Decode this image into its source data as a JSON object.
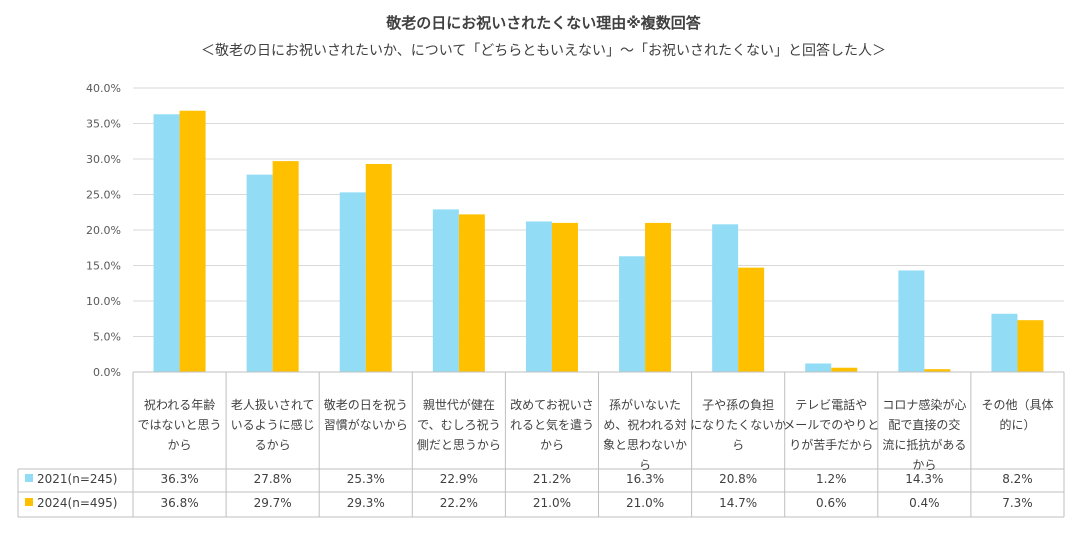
{
  "chart_data": {
    "type": "bar",
    "title": "敬老の日にお祝いされたくない理由※複数回答",
    "subtitle": "＜敬老の日にお祝いされたいか、について「どちらともいえない」～「お祝いされたくない」と回答した人＞",
    "ylim": [
      0,
      40
    ],
    "yticks": [
      "0.0%",
      "5.0%",
      "10.0%",
      "15.0%",
      "20.0%",
      "25.0%",
      "30.0%",
      "35.0%",
      "40.0%"
    ],
    "categories": [
      [
        "祝われる年齢",
        "ではないと思う",
        "から"
      ],
      [
        "老人扱いされて",
        "いるように感じ",
        "るから"
      ],
      [
        "敬老の日を祝う",
        "習慣がないから"
      ],
      [
        "親世代が健在",
        "で、むしろ祝う",
        "側だと思うから"
      ],
      [
        "改めてお祝いさ",
        "れると気を遣う",
        "から"
      ],
      [
        "孫がいないた",
        "め、祝われる対",
        "象と思わないか",
        "ら"
      ],
      [
        "子や孫の負担",
        "になりたくないか",
        "ら"
      ],
      [
        "テレビ電話や",
        "メールでのやりと",
        "りが苦手だから"
      ],
      [
        "コロナ感染が心",
        "配で直接の交",
        "流に抵抗がある",
        "から"
      ],
      [
        "その他（具体",
        "的に）"
      ]
    ],
    "series": [
      {
        "name": "2021(n=245)",
        "color": "#92DCF6",
        "values": [
          36.3,
          27.8,
          25.3,
          22.9,
          21.2,
          16.3,
          20.8,
          1.2,
          14.3,
          8.2
        ],
        "labels": [
          "36.3%",
          "27.8%",
          "25.3%",
          "22.9%",
          "21.2%",
          "16.3%",
          "20.8%",
          "1.2%",
          "14.3%",
          "8.2%"
        ]
      },
      {
        "name": "2024(n=495)",
        "color": "#FFC000",
        "values": [
          36.8,
          29.7,
          29.3,
          22.2,
          21.0,
          21.0,
          14.7,
          0.6,
          0.4,
          7.3
        ],
        "labels": [
          "36.8%",
          "29.7%",
          "29.3%",
          "22.2%",
          "21.0%",
          "21.0%",
          "14.7%",
          "0.6%",
          "0.4%",
          "7.3%"
        ]
      }
    ],
    "grid": true,
    "legend": "data-table"
  }
}
